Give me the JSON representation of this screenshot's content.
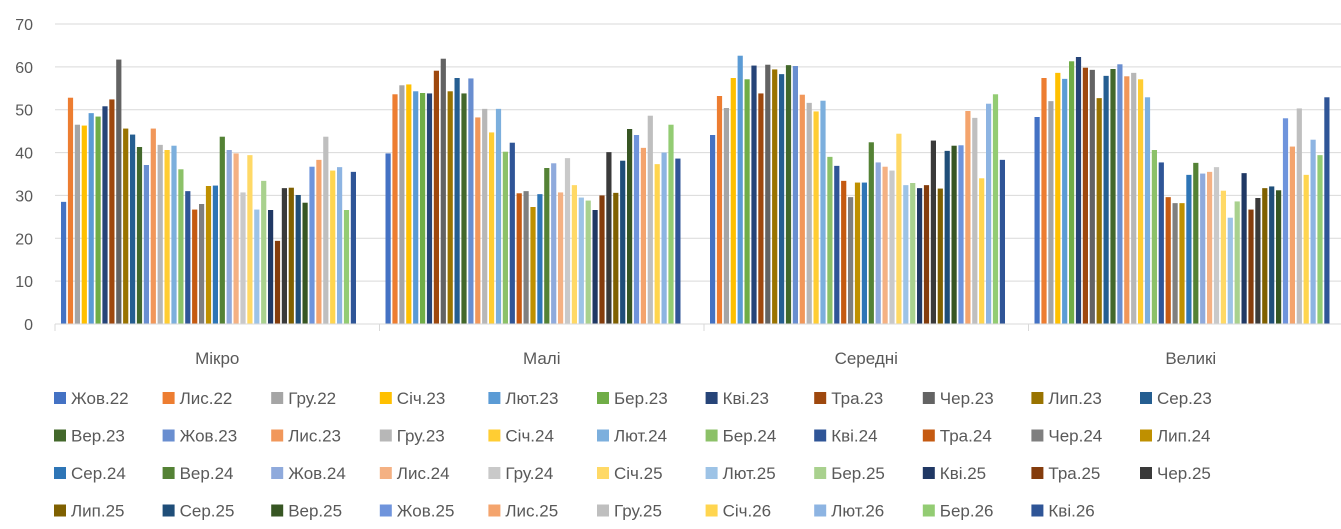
{
  "chart_data": {
    "type": "bar",
    "title": "",
    "xlabel": "",
    "ylabel": "",
    "ylim": [
      0,
      70
    ],
    "yticks": [
      0,
      10,
      20,
      30,
      40,
      50,
      60,
      70
    ],
    "grid": true,
    "legend_position": "bottom",
    "categories": [
      "Мікро",
      "Малі",
      "Середні",
      "Великі"
    ],
    "series": [
      {
        "name": "Жов.22",
        "color": "#4472C4",
        "values": [
          28.5,
          39.8,
          44.1,
          48.3
        ]
      },
      {
        "name": "Лис.22",
        "color": "#ED7D31",
        "values": [
          52.8,
          53.6,
          53.2,
          57.4
        ]
      },
      {
        "name": "Гру.22",
        "color": "#A5A5A5",
        "values": [
          46.5,
          55.7,
          50.4,
          52.0
        ]
      },
      {
        "name": "Січ.23",
        "color": "#FFC000",
        "values": [
          46.3,
          55.9,
          57.4,
          58.6
        ]
      },
      {
        "name": "Лют.23",
        "color": "#5B9BD5",
        "values": [
          49.2,
          54.3,
          62.6,
          57.2
        ]
      },
      {
        "name": "Бер.23",
        "color": "#70AD47",
        "values": [
          48.4,
          53.9,
          57.1,
          61.3
        ]
      },
      {
        "name": "Кві.23",
        "color": "#264478",
        "values": [
          50.8,
          53.8,
          60.3,
          62.3
        ]
      },
      {
        "name": "Тра.23",
        "color": "#9E480E",
        "values": [
          52.4,
          59.1,
          53.8,
          59.8
        ]
      },
      {
        "name": "Чер.23",
        "color": "#636363",
        "values": [
          61.7,
          61.9,
          60.5,
          59.3
        ]
      },
      {
        "name": "Лип.23",
        "color": "#997300",
        "values": [
          45.6,
          54.3,
          59.4,
          52.7
        ]
      },
      {
        "name": "Сер.23",
        "color": "#255E91",
        "values": [
          44.2,
          57.4,
          58.3,
          57.9
        ]
      },
      {
        "name": "Вер.23",
        "color": "#43682B",
        "values": [
          41.3,
          53.8,
          60.4,
          59.5
        ]
      },
      {
        "name": "Жов.23",
        "color": "#698ED0",
        "values": [
          37.1,
          57.3,
          60.2,
          60.6
        ]
      },
      {
        "name": "Лис.23",
        "color": "#F1975A",
        "values": [
          45.6,
          48.2,
          53.5,
          57.8
        ]
      },
      {
        "name": "Гру.23",
        "color": "#B7B7B7",
        "values": [
          41.8,
          50.2,
          51.6,
          58.6
        ]
      },
      {
        "name": "Січ.24",
        "color": "#FFCD33",
        "values": [
          40.6,
          44.7,
          49.6,
          57.1
        ]
      },
      {
        "name": "Лют.24",
        "color": "#7CAFDD",
        "values": [
          41.6,
          50.2,
          52.1,
          52.9
        ]
      },
      {
        "name": "Бер.24",
        "color": "#8CC168",
        "values": [
          36.1,
          40.2,
          39.0,
          40.6
        ]
      },
      {
        "name": "Кві.24",
        "color": "#2F5597",
        "values": [
          31.0,
          42.3,
          36.9,
          37.7
        ]
      },
      {
        "name": "Тра.24",
        "color": "#C55A11",
        "values": [
          26.7,
          30.5,
          33.4,
          29.6
        ]
      },
      {
        "name": "Чер.24",
        "color": "#7F7F7F",
        "values": [
          28.0,
          31.0,
          29.6,
          28.2
        ]
      },
      {
        "name": "Лип.24",
        "color": "#BF9000",
        "values": [
          32.2,
          27.3,
          33.0,
          28.2
        ]
      },
      {
        "name": "Сер.24",
        "color": "#2E75B6",
        "values": [
          32.3,
          30.3,
          33.0,
          34.8
        ]
      },
      {
        "name": "Вер.24",
        "color": "#548235",
        "values": [
          43.7,
          36.4,
          42.4,
          37.6
        ]
      },
      {
        "name": "Жов.24",
        "color": "#8FAADC",
        "values": [
          40.6,
          37.5,
          37.7,
          35.1
        ]
      },
      {
        "name": "Лис.24",
        "color": "#F4B183",
        "values": [
          39.8,
          30.7,
          36.7,
          35.5
        ]
      },
      {
        "name": "Гру.24",
        "color": "#C9C9C9",
        "values": [
          30.7,
          38.7,
          35.8,
          36.6
        ]
      },
      {
        "name": "Січ.25",
        "color": "#FFD966",
        "values": [
          39.4,
          32.4,
          44.4,
          31.1
        ]
      },
      {
        "name": "Лют.25",
        "color": "#9DC3E6",
        "values": [
          26.7,
          29.5,
          32.4,
          24.8
        ]
      },
      {
        "name": "Бер.25",
        "color": "#A9D18E",
        "values": [
          33.4,
          28.8,
          32.9,
          28.6
        ]
      },
      {
        "name": "Кві.25",
        "color": "#203864",
        "values": [
          26.6,
          26.6,
          31.7,
          35.2
        ]
      },
      {
        "name": "Тра.25",
        "color": "#843C0C",
        "values": [
          19.4,
          30.0,
          32.4,
          26.7
        ]
      },
      {
        "name": "Чер.25",
        "color": "#3A3A3A",
        "values": [
          31.7,
          40.1,
          42.8,
          29.4
        ]
      },
      {
        "name": "Лип.25",
        "color": "#7F6000",
        "values": [
          31.8,
          30.6,
          31.6,
          31.7
        ]
      },
      {
        "name": "Сер.25",
        "color": "#1F4E79",
        "values": [
          30.1,
          38.1,
          40.4,
          32.1
        ]
      },
      {
        "name": "Вер.25",
        "color": "#375623",
        "values": [
          28.3,
          45.5,
          41.6,
          31.2
        ]
      },
      {
        "name": "Жов.25",
        "color": "#6F94DC",
        "values": [
          36.7,
          44.1,
          41.7,
          48.0
        ]
      },
      {
        "name": "Лис.25",
        "color": "#F4A46D",
        "values": [
          38.3,
          41.1,
          49.7,
          41.4
        ]
      },
      {
        "name": "Гру.25",
        "color": "#BFBFBF",
        "values": [
          43.7,
          48.6,
          48.1,
          50.3
        ]
      },
      {
        "name": "Січ.26",
        "color": "#FFD54F",
        "values": [
          35.8,
          37.3,
          34.0,
          34.8
        ]
      },
      {
        "name": "Лют.26",
        "color": "#8DB4E2",
        "values": [
          36.6,
          40.0,
          51.4,
          43.0
        ]
      },
      {
        "name": "Бер.26",
        "color": "#93CC73",
        "values": [
          26.6,
          46.5,
          53.6,
          39.4
        ]
      },
      {
        "name": "Кві.26",
        "color": "#2F5597",
        "values": [
          35.5,
          38.6,
          38.3,
          52.9
        ]
      }
    ]
  }
}
